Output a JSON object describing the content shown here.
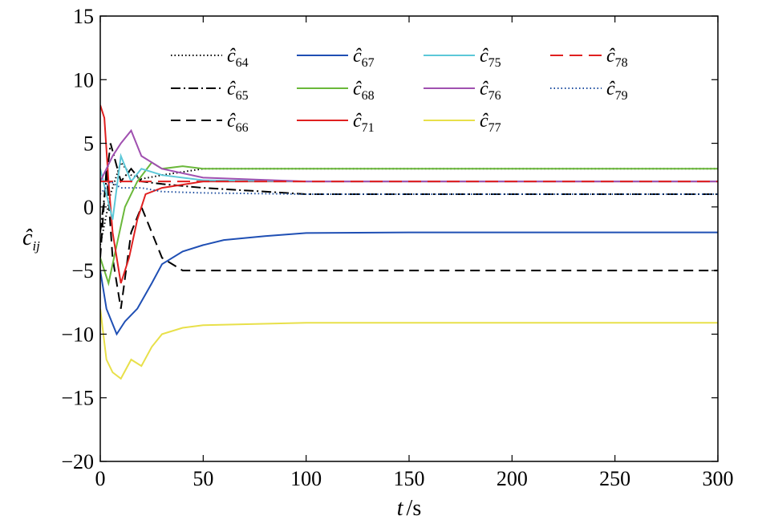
{
  "chart_data": {
    "type": "line",
    "xlabel_var": "t",
    "xlabel_unit": "/s",
    "ylabel_var": "ĉ",
    "ylabel_sub": "ij",
    "xlim": [
      0,
      300
    ],
    "ylim": [
      -20,
      15
    ],
    "xticks": [
      0,
      50,
      100,
      150,
      200,
      250,
      300
    ],
    "yticks": [
      -20,
      -15,
      -10,
      -5,
      0,
      5,
      10,
      15
    ],
    "grid": false,
    "legend_position": "top",
    "series": [
      {
        "name": "ĉ",
        "sub": "64",
        "color": "#000000",
        "dash": "dotted",
        "x": [
          0,
          5,
          10,
          15,
          20,
          30,
          50,
          100,
          300
        ],
        "y": [
          -3,
          1,
          3.5,
          2.5,
          2.2,
          2.5,
          3,
          3,
          3
        ]
      },
      {
        "name": "ĉ",
        "sub": "65",
        "color": "#000000",
        "dash": "dashdot",
        "x": [
          0,
          5,
          10,
          15,
          20,
          30,
          50,
          80,
          100,
          300
        ],
        "y": [
          -2,
          5,
          2,
          3,
          2,
          1.8,
          1.5,
          1.2,
          1,
          1
        ]
      },
      {
        "name": "ĉ",
        "sub": "66",
        "color": "#000000",
        "dash": "dashed",
        "x": [
          0,
          3,
          6,
          10,
          15,
          20,
          25,
          30,
          40,
          50,
          100,
          300
        ],
        "y": [
          -4,
          3,
          -4,
          -8,
          -2,
          0,
          -2,
          -4,
          -5,
          -5,
          -5,
          -5
        ]
      },
      {
        "name": "ĉ",
        "sub": "67",
        "color": "#1f4fb4",
        "dash": "solid",
        "x": [
          0,
          3,
          8,
          12,
          18,
          25,
          30,
          40,
          50,
          60,
          80,
          100,
          150,
          300
        ],
        "y": [
          -5,
          -8,
          -10,
          -9,
          -8,
          -6,
          -4.5,
          -3.5,
          -3,
          -2.6,
          -2.3,
          -2.05,
          -2,
          -2
        ]
      },
      {
        "name": "ĉ",
        "sub": "68",
        "color": "#6ab83a",
        "dash": "solid",
        "x": [
          0,
          4,
          8,
          12,
          18,
          25,
          30,
          40,
          50,
          100,
          300
        ],
        "y": [
          -4,
          -6,
          -3,
          0,
          2,
          3.5,
          3,
          3.2,
          3,
          3,
          3
        ]
      },
      {
        "name": "ĉ",
        "sub": "71",
        "color": "#e02020",
        "dash": "solid",
        "x": [
          0,
          2,
          4,
          6,
          10,
          14,
          18,
          22,
          30,
          50,
          100,
          300
        ],
        "y": [
          8,
          7,
          2,
          -2,
          -6,
          -4,
          -1,
          1,
          1.5,
          2,
          2,
          2
        ]
      },
      {
        "name": "ĉ",
        "sub": "75",
        "color": "#5cc8d8",
        "dash": "solid",
        "x": [
          0,
          3,
          6,
          10,
          15,
          20,
          30,
          50,
          100,
          300
        ],
        "y": [
          3,
          1,
          -1,
          4,
          2,
          3,
          2.5,
          2.1,
          2,
          2
        ]
      },
      {
        "name": "ĉ",
        "sub": "76",
        "color": "#a050b0",
        "dash": "solid",
        "x": [
          0,
          3,
          6,
          10,
          15,
          20,
          30,
          50,
          100,
          300
        ],
        "y": [
          2,
          3,
          4,
          5,
          6,
          4,
          3,
          2.3,
          2,
          2
        ]
      },
      {
        "name": "ĉ",
        "sub": "77",
        "color": "#e8e04a",
        "dash": "solid",
        "x": [
          0,
          3,
          6,
          10,
          15,
          20,
          25,
          30,
          40,
          50,
          100,
          300
        ],
        "y": [
          -8,
          -12,
          -13,
          -13.5,
          -12,
          -12.5,
          -11,
          -10,
          -9.5,
          -9.3,
          -9.1,
          -9.1
        ]
      },
      {
        "name": "ĉ",
        "sub": "78",
        "color": "#e02020",
        "dash": "longdash",
        "x": [
          0,
          50,
          100,
          300
        ],
        "y": [
          2,
          2,
          2,
          2
        ]
      },
      {
        "name": "ĉ",
        "sub": "79",
        "color": "#1f4fa0",
        "dash": "dotted",
        "x": [
          0,
          5,
          10,
          20,
          30,
          50,
          100,
          300
        ],
        "y": [
          1,
          2,
          1.5,
          1.5,
          1.2,
          1.1,
          1,
          1
        ]
      }
    ]
  }
}
